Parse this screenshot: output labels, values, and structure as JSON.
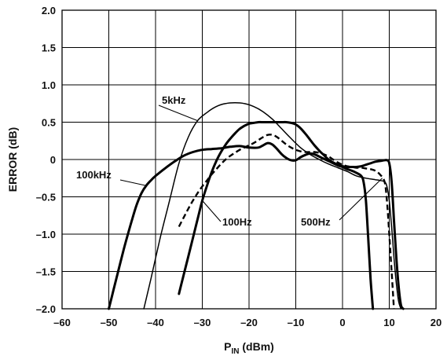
{
  "chart_data": {
    "type": "line",
    "title": "",
    "xlabel": "P",
    "xlabel_sub": "IN",
    "xlabel_unit": " (dBm)",
    "ylabel": "ERROR (dB)",
    "xlim": [
      -60,
      20
    ],
    "ylim": [
      -2.0,
      2.0
    ],
    "xticks": [
      -60,
      -50,
      -40,
      -30,
      -20,
      -10,
      0,
      10,
      20
    ],
    "xtick_labels": [
      "–60",
      "–50",
      "–40",
      "–30",
      "–20",
      "–10",
      "0",
      "10",
      "20"
    ],
    "yticks": [
      2.0,
      1.5,
      1.0,
      0.5,
      0,
      -0.5,
      -1.0,
      -1.5,
      -2.0
    ],
    "ytick_labels": [
      "2.0",
      "1.5",
      "1.0",
      "0.5",
      "0",
      "–0.5",
      "–1.0",
      "–1.5",
      "–2.0"
    ],
    "grid": true,
    "legend": "annotations",
    "series": [
      {
        "name": "5kHz",
        "style": "thin",
        "x": [
          -42.5,
          -41,
          -39,
          -37,
          -35,
          -33,
          -31,
          -29,
          -27,
          -25,
          -23,
          -21,
          -19,
          -17,
          -15,
          -13,
          -11,
          -9,
          -7,
          -5,
          -3,
          -1,
          1,
          3,
          5,
          7,
          8,
          9,
          9.5,
          10,
          10.5,
          11,
          11.5,
          12,
          12.5
        ],
        "y": [
          -2.0,
          -1.6,
          -1.05,
          -0.55,
          -0.05,
          0.3,
          0.52,
          0.63,
          0.71,
          0.75,
          0.76,
          0.75,
          0.71,
          0.64,
          0.54,
          0.41,
          0.28,
          0.16,
          0.07,
          0.0,
          -0.06,
          -0.11,
          -0.16,
          -0.22,
          -0.25,
          -0.27,
          -0.28,
          -0.3,
          -0.36,
          -0.55,
          -0.9,
          -1.3,
          -1.65,
          -1.9,
          -2.0
        ]
      },
      {
        "name": "100kHz",
        "style": "thick",
        "x": [
          -50,
          -49,
          -48,
          -47,
          -46,
          -45,
          -44,
          -43,
          -42,
          -41,
          -40,
          -38,
          -36,
          -34,
          -32,
          -30,
          -28,
          -26,
          -24,
          -22,
          -20,
          -18,
          -17,
          -16,
          -15,
          -14,
          -13,
          -12,
          -11,
          -10,
          -9,
          -8,
          -7,
          -6,
          -5,
          -4,
          -3,
          -2,
          -1,
          0,
          1,
          2,
          3,
          4,
          4.5,
          5,
          5.5,
          6,
          6.5
        ],
        "y": [
          -2.0,
          -1.75,
          -1.5,
          -1.25,
          -1.02,
          -0.8,
          -0.6,
          -0.45,
          -0.35,
          -0.28,
          -0.22,
          -0.12,
          -0.03,
          0.05,
          0.1,
          0.13,
          0.14,
          0.15,
          0.17,
          0.18,
          0.16,
          0.16,
          0.19,
          0.22,
          0.2,
          0.14,
          0.07,
          0.02,
          -0.01,
          -0.01,
          0.03,
          0.06,
          0.08,
          0.07,
          0.04,
          0.01,
          -0.02,
          -0.05,
          -0.08,
          -0.1,
          -0.13,
          -0.15,
          -0.18,
          -0.22,
          -0.3,
          -0.55,
          -1.05,
          -1.6,
          -2.0
        ]
      },
      {
        "name": "100Hz",
        "style": "thick",
        "x": [
          -35,
          -34,
          -33,
          -32,
          -31,
          -30,
          -29,
          -28,
          -27,
          -26,
          -25,
          -24,
          -23,
          -22,
          -21,
          -20,
          -19,
          -18,
          -17,
          -16,
          -15,
          -14,
          -13,
          -12,
          -11,
          -10,
          -9,
          -8,
          -7,
          -6,
          -5,
          -4,
          -3,
          -2,
          -1,
          0,
          1,
          2,
          3,
          4,
          5,
          6,
          7,
          8,
          9,
          9.5,
          10,
          10.5,
          11,
          11.5,
          12,
          12.5,
          13
        ],
        "y": [
          -1.8,
          -1.55,
          -1.3,
          -1.05,
          -0.8,
          -0.55,
          -0.35,
          -0.17,
          -0.02,
          0.1,
          0.2,
          0.28,
          0.35,
          0.41,
          0.45,
          0.48,
          0.49,
          0.5,
          0.5,
          0.5,
          0.5,
          0.5,
          0.5,
          0.5,
          0.49,
          0.47,
          0.42,
          0.35,
          0.27,
          0.19,
          0.12,
          0.06,
          0.0,
          -0.04,
          -0.07,
          -0.09,
          -0.1,
          -0.1,
          -0.1,
          -0.09,
          -0.07,
          -0.05,
          -0.03,
          -0.02,
          -0.01,
          -0.01,
          -0.05,
          -0.3,
          -0.8,
          -1.3,
          -1.7,
          -1.95,
          -2.0
        ]
      },
      {
        "name": "500Hz",
        "style": "dashed",
        "x": [
          -35,
          -34,
          -33,
          -32,
          -31,
          -30,
          -29,
          -28,
          -27,
          -26,
          -25,
          -24,
          -23,
          -22,
          -21,
          -20,
          -19,
          -18,
          -17,
          -16,
          -15,
          -14,
          -13,
          -12,
          -11,
          -10,
          -9,
          -8,
          -7,
          -6,
          -5,
          -4,
          -3,
          -2,
          -1,
          0,
          1,
          2,
          3,
          4,
          5,
          6,
          7,
          8,
          9,
          9.5,
          10,
          10.5,
          11
        ],
        "y": [
          -0.9,
          -0.78,
          -0.66,
          -0.55,
          -0.45,
          -0.36,
          -0.28,
          -0.2,
          -0.13,
          -0.06,
          0.0,
          0.05,
          0.09,
          0.13,
          0.16,
          0.19,
          0.22,
          0.26,
          0.3,
          0.33,
          0.33,
          0.3,
          0.25,
          0.2,
          0.16,
          0.13,
          0.11,
          0.1,
          0.1,
          0.1,
          0.09,
          0.07,
          0.04,
          0.0,
          -0.04,
          -0.07,
          -0.09,
          -0.1,
          -0.11,
          -0.11,
          -0.12,
          -0.13,
          -0.15,
          -0.2,
          -0.3,
          -0.55,
          -1.0,
          -1.5,
          -2.0
        ]
      }
    ],
    "annotations": [
      {
        "text": "5kHz",
        "series": "5kHz"
      },
      {
        "text": "100kHz",
        "series": "100kHz"
      },
      {
        "text": "100Hz",
        "series": "100Hz"
      },
      {
        "text": "500Hz",
        "series": "500Hz"
      }
    ]
  }
}
